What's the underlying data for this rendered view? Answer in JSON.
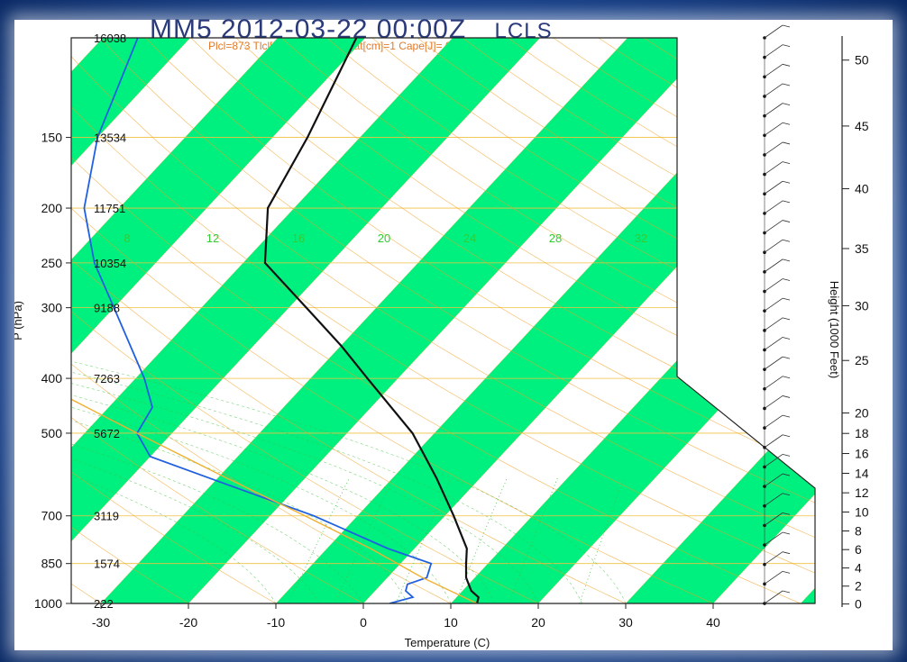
{
  "title": "MM5 2012-03-22 00:00Z",
  "title_suffix": "LCLS",
  "subtitle": "Plcl=873 Tlcl[C]=0 Shox=5 Pwat[cm]=1 Cape[J]= 0",
  "colors": {
    "band": "#00f080",
    "isotherm": "#f0c040",
    "dry_adiabat": "#f0a020",
    "mixing_ratio": "#40c040",
    "temperature": "#111111",
    "dewpoint": "#2060e0",
    "parcel": "#f0b030",
    "frame": "#1d4a98"
  },
  "chart_data": {
    "type": "line",
    "chart_kind": "skew-T log-P",
    "xlabel": "Temperature (C)",
    "ylabel": "P (hPa)",
    "y2label": "Height (1000 Feet)",
    "x_ticks": [
      "-30",
      "-20",
      "-10",
      "0",
      "10",
      "20",
      "30",
      "40"
    ],
    "y_ticks": [
      "150",
      "200",
      "250",
      "300",
      "400",
      "500",
      "700",
      "850",
      "1000"
    ],
    "y2_ticks": [
      "50",
      "45",
      "40",
      "35",
      "30",
      "25",
      "20",
      "18",
      "16",
      "14",
      "12",
      "10",
      "8",
      "6",
      "4",
      "2",
      "0"
    ],
    "height_labels": [
      {
        "p": 100,
        "label": "16038"
      },
      {
        "p": 150,
        "label": "13534"
      },
      {
        "p": 200,
        "label": "11751"
      },
      {
        "p": 250,
        "label": "10354"
      },
      {
        "p": 300,
        "label": "9188"
      },
      {
        "p": 400,
        "label": "7263"
      },
      {
        "p": 500,
        "label": "5672"
      },
      {
        "p": 700,
        "label": "3119"
      },
      {
        "p": 850,
        "label": "1574"
      },
      {
        "p": 1000,
        "label": "222"
      }
    ],
    "mixing_ratio_labels": [
      "8",
      "12",
      "16",
      "20",
      "24",
      "28",
      "32"
    ],
    "isotherm_edge_labels": [
      "30",
      "20",
      "10",
      "0",
      "10",
      "20",
      "30"
    ],
    "series": [
      {
        "role": "temperature",
        "points": [
          {
            "p": 1000,
            "t": 13
          },
          {
            "p": 975,
            "t": 12.5
          },
          {
            "p": 950,
            "t": 11
          },
          {
            "p": 900,
            "t": 9
          },
          {
            "p": 850,
            "t": 7.5
          },
          {
            "p": 800,
            "t": 6
          },
          {
            "p": 700,
            "t": 1
          },
          {
            "p": 600,
            "t": -5
          },
          {
            "p": 500,
            "t": -12.5
          },
          {
            "p": 400,
            "t": -23.5
          },
          {
            "p": 350,
            "t": -30
          },
          {
            "p": 300,
            "t": -38
          },
          {
            "p": 250,
            "t": -47.5
          },
          {
            "p": 200,
            "t": -53
          },
          {
            "p": 150,
            "t": -56
          },
          {
            "p": 100,
            "t": -61
          }
        ]
      },
      {
        "role": "dewpoint",
        "points": [
          {
            "p": 1000,
            "t": 3
          },
          {
            "p": 975,
            "t": 5
          },
          {
            "p": 950,
            "t": 3.5
          },
          {
            "p": 925,
            "t": 3
          },
          {
            "p": 900,
            "t": 4.5
          },
          {
            "p": 850,
            "t": 3.5
          },
          {
            "p": 800,
            "t": -3
          },
          {
            "p": 700,
            "t": -15
          },
          {
            "p": 600,
            "t": -31
          },
          {
            "p": 550,
            "t": -40
          },
          {
            "p": 500,
            "t": -44
          },
          {
            "p": 450,
            "t": -45
          },
          {
            "p": 400,
            "t": -49
          },
          {
            "p": 300,
            "t": -60
          },
          {
            "p": 250,
            "t": -67
          },
          {
            "p": 200,
            "t": -74
          },
          {
            "p": 150,
            "t": -80
          },
          {
            "p": 100,
            "t": -86
          }
        ]
      },
      {
        "role": "parcel",
        "points": [
          {
            "p": 1000,
            "t": 13
          },
          {
            "p": 900,
            "t": 4
          },
          {
            "p": 800,
            "t": -5
          },
          {
            "p": 700,
            "t": -16
          },
          {
            "p": 600,
            "t": -29
          },
          {
            "p": 500,
            "t": -44
          },
          {
            "p": 400,
            "t": -62
          },
          {
            "p": 300,
            "t": -85
          },
          {
            "p": 250,
            "t": -100
          },
          {
            "p": 220,
            "t": -106
          },
          {
            "p": 170,
            "t": -111
          },
          {
            "p": 120,
            "t": -118
          },
          {
            "p": 90,
            "t": -123
          }
        ]
      }
    ],
    "wind_barbs": {
      "count": 30,
      "p_range": [
        1000,
        100
      ]
    }
  }
}
